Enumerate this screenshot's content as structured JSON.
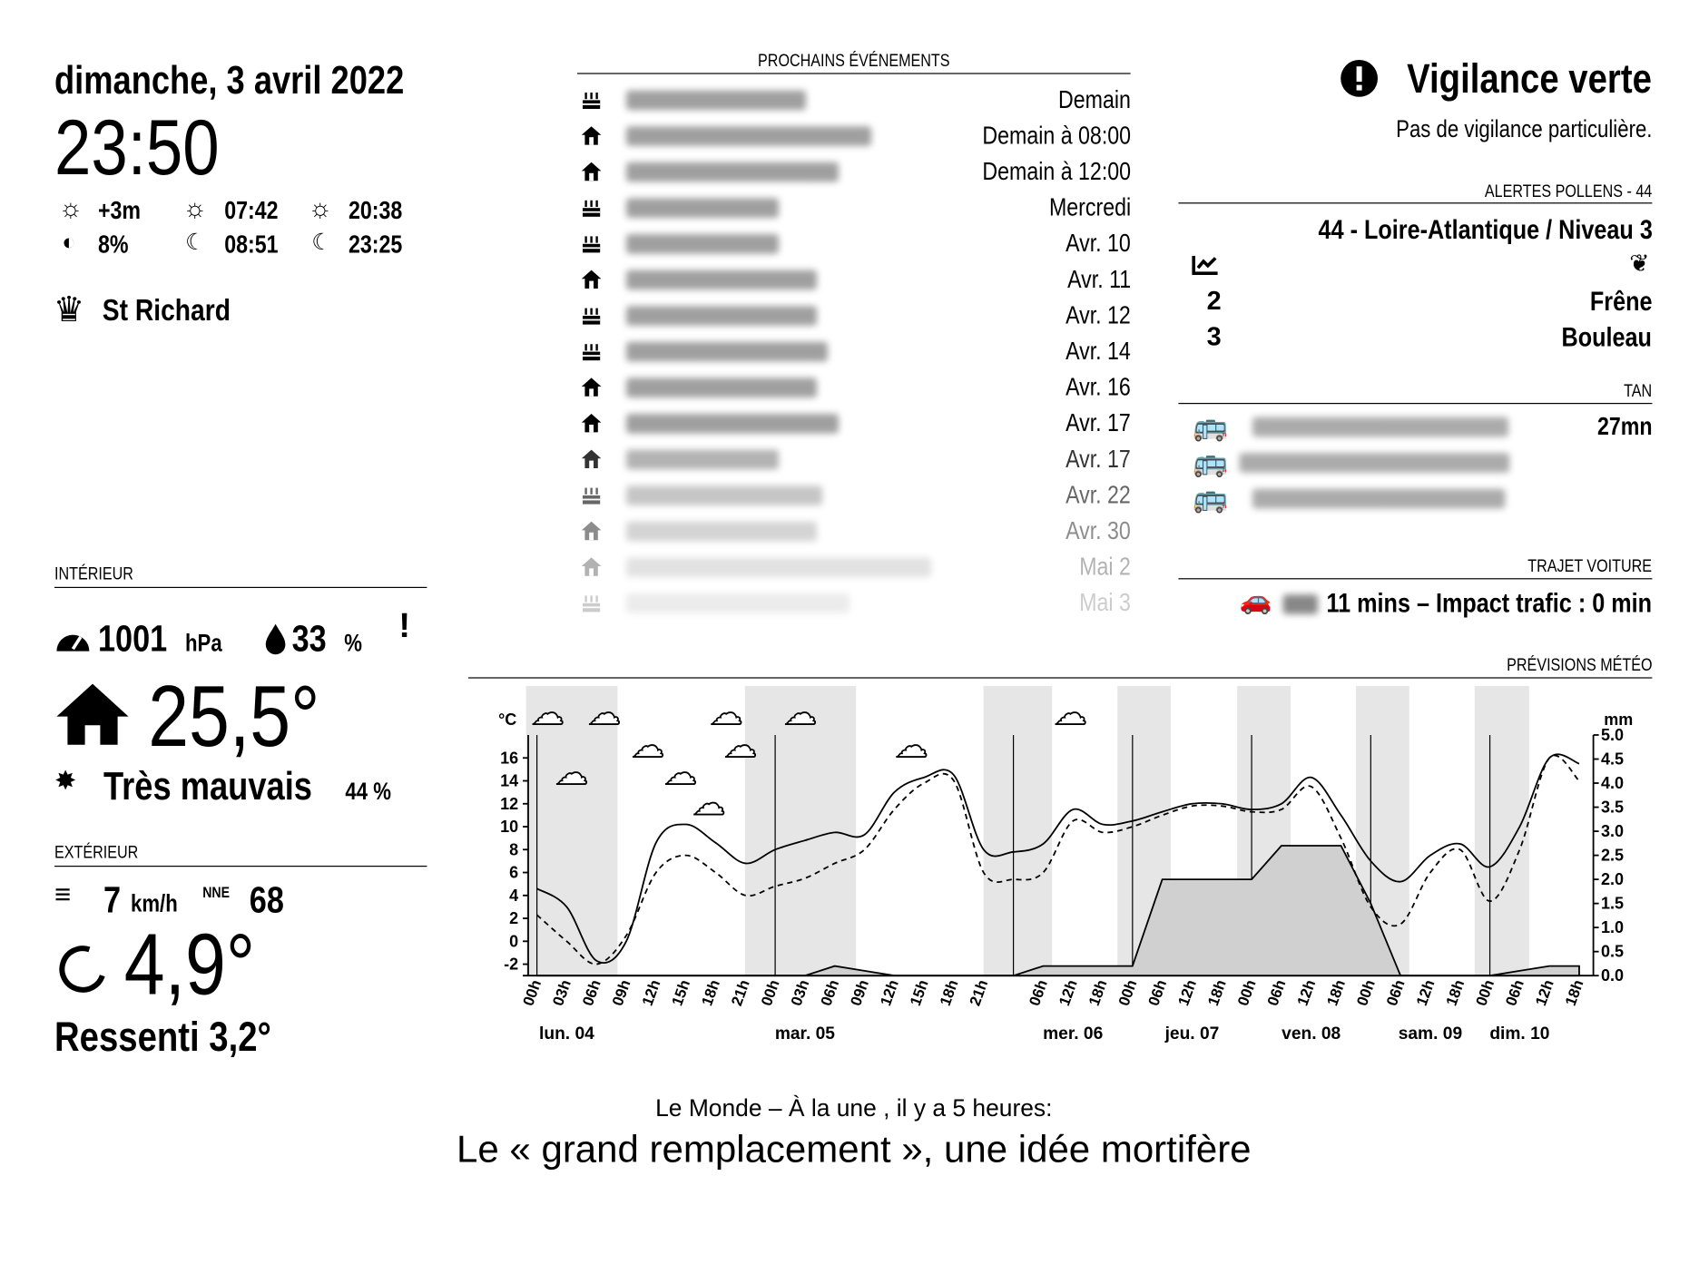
{
  "header": {
    "date": "dimanche, 3 avril 2022",
    "time": "23:50",
    "day_length": "+3m",
    "sunrise": "07:42",
    "sunset": "20:38",
    "moon_phase": "8%",
    "moonrise": "08:51",
    "moonset": "23:25",
    "saint": "St Richard"
  },
  "indoor": {
    "title": "INTÉRIEUR",
    "pressure": 1001,
    "pressure_unit": "hPa",
    "humidity": 33,
    "humidity_unit": "%",
    "alert": "!",
    "temperature": "25,5°",
    "air_quality": "Très mauvais",
    "air_quality_value": "44 %"
  },
  "outdoor": {
    "title": "EXTÉRIEUR",
    "wind_speed": 7,
    "wind_unit": "km/h",
    "wind_direction": "NNE",
    "humidity": 68,
    "temperature": "4,9°",
    "feels_like": "Ressenti 3,2°"
  },
  "events": {
    "title": "PROCHAINS ÉVÉNEMENTS",
    "items": [
      {
        "icon": "cake",
        "when": "Demain"
      },
      {
        "icon": "house",
        "when": "Demain à 08:00"
      },
      {
        "icon": "house",
        "when": "Demain à 12:00"
      },
      {
        "icon": "cake",
        "when": "Mercredi"
      },
      {
        "icon": "cake",
        "when": "Avr. 10"
      },
      {
        "icon": "house",
        "when": "Avr. 11"
      },
      {
        "icon": "cake",
        "when": "Avr. 12"
      },
      {
        "icon": "cake",
        "when": "Avr. 14"
      },
      {
        "icon": "house",
        "when": "Avr. 16"
      },
      {
        "icon": "house",
        "when": "Avr. 17"
      },
      {
        "icon": "house",
        "when": "Avr. 17"
      },
      {
        "icon": "cake",
        "when": "Avr. 22"
      },
      {
        "icon": "house",
        "when": "Avr. 30"
      },
      {
        "icon": "house",
        "when": "Mai 2"
      },
      {
        "icon": "cake",
        "when": "Mai 3"
      }
    ]
  },
  "vigilance": {
    "title": "Vigilance verte",
    "text": "Pas de vigilance particulière."
  },
  "pollen": {
    "title": "ALERTES POLLENS - 44",
    "region": "44 - Loire-Atlantique / Niveau 3",
    "rows": [
      {
        "level": 2,
        "name": "Frêne"
      },
      {
        "level": 3,
        "name": "Bouleau"
      }
    ]
  },
  "transit": {
    "title": "TAN",
    "departures": [
      "27mn"
    ]
  },
  "car": {
    "title": "TRAJET VOITURE",
    "text": "11 mins – Impact trafic : 0 min"
  },
  "news": {
    "source": "Le Monde – À la une , il y a 5 heures:",
    "headline": "Le « grand remplacement », une idée mortifère"
  },
  "chart_data": {
    "type": "line",
    "title": "PRÉVISIONS MÉTÉO",
    "y_label": "°C",
    "y2_label": "mm",
    "categories": [
      "00h",
      "03h",
      "06h",
      "09h",
      "12h",
      "15h",
      "18h",
      "21h",
      "00h",
      "03h",
      "06h",
      "09h",
      "12h",
      "15h",
      "18h",
      "21h",
      null,
      "06h",
      "12h",
      "18h",
      "00h",
      "06h",
      "12h",
      "18h",
      "00h",
      "06h",
      "12h",
      "18h",
      "00h",
      "06h",
      "12h",
      "18h",
      "00h",
      "06h",
      "12h",
      "18h"
    ],
    "days": [
      null,
      "lun. 04",
      null,
      null,
      null,
      null,
      null,
      null,
      null,
      "mar. 05",
      null,
      null,
      null,
      null,
      null,
      null,
      null,
      null,
      "mer. 06",
      null,
      null,
      null,
      "jeu. 07",
      null,
      null,
      null,
      "ven. 08",
      null,
      null,
      null,
      "sam. 09",
      null,
      null,
      "dim. 10",
      null,
      null
    ],
    "ylim": [
      -3,
      18
    ],
    "yticks": [
      -2,
      0,
      2,
      4,
      6,
      8,
      10,
      12,
      14,
      16
    ],
    "y2lim": [
      0,
      5
    ],
    "y2ticks": [
      {
        "value": 0,
        "label": "0.0"
      },
      0.5,
      {
        "value": 1,
        "label": "1.0"
      },
      1.5,
      {
        "value": 2,
        "label": "2.0"
      },
      2.5,
      {
        "value": 3,
        "label": "3.0"
      },
      3.5,
      {
        "value": 4,
        "label": "4.0"
      },
      4.5,
      {
        "value": 5,
        "label": "5.0"
      }
    ],
    "series": [
      {
        "color": "#000000",
        "style": "solid",
        "values": [
          4.6,
          3,
          -1.7,
          0,
          8.6,
          10.2,
          8.6,
          6.8,
          8,
          8.8,
          9.5,
          9.3,
          13,
          14.3,
          14.5,
          8,
          7.8,
          8.5,
          11.5,
          10.2,
          10.5,
          11.3,
          12,
          12,
          11.5,
          12,
          14.3,
          11,
          7,
          5.2,
          7.5,
          8.5,
          6.5,
          10,
          16,
          15.5
        ]
      },
      {
        "color": "#000000",
        "style": "dashed",
        "values": [
          2.3,
          0,
          -2,
          0.5,
          6,
          7.5,
          6,
          4,
          4.8,
          5.5,
          6.8,
          8,
          11.5,
          13.8,
          14,
          6,
          5.4,
          6,
          10.5,
          9.5,
          10,
          11,
          11.8,
          11.8,
          11.3,
          11.5,
          13.5,
          9,
          3,
          1.5,
          6,
          8,
          3.5,
          8,
          16,
          14
        ]
      },
      {
        "color": "#000000",
        "fill": "#d0d0d0",
        "axis": "y2",
        "values": [
          0,
          0,
          0,
          0,
          0,
          0,
          0,
          0,
          0,
          0,
          0.2,
          0.1,
          0,
          0,
          0,
          0,
          0,
          0.2,
          0.2,
          0.2,
          0.2,
          2,
          2,
          2,
          2,
          2.7,
          2.7,
          2.7,
          1.5,
          0,
          0,
          0,
          0,
          0.1,
          0.2,
          0.2
        ]
      }
    ]
  }
}
